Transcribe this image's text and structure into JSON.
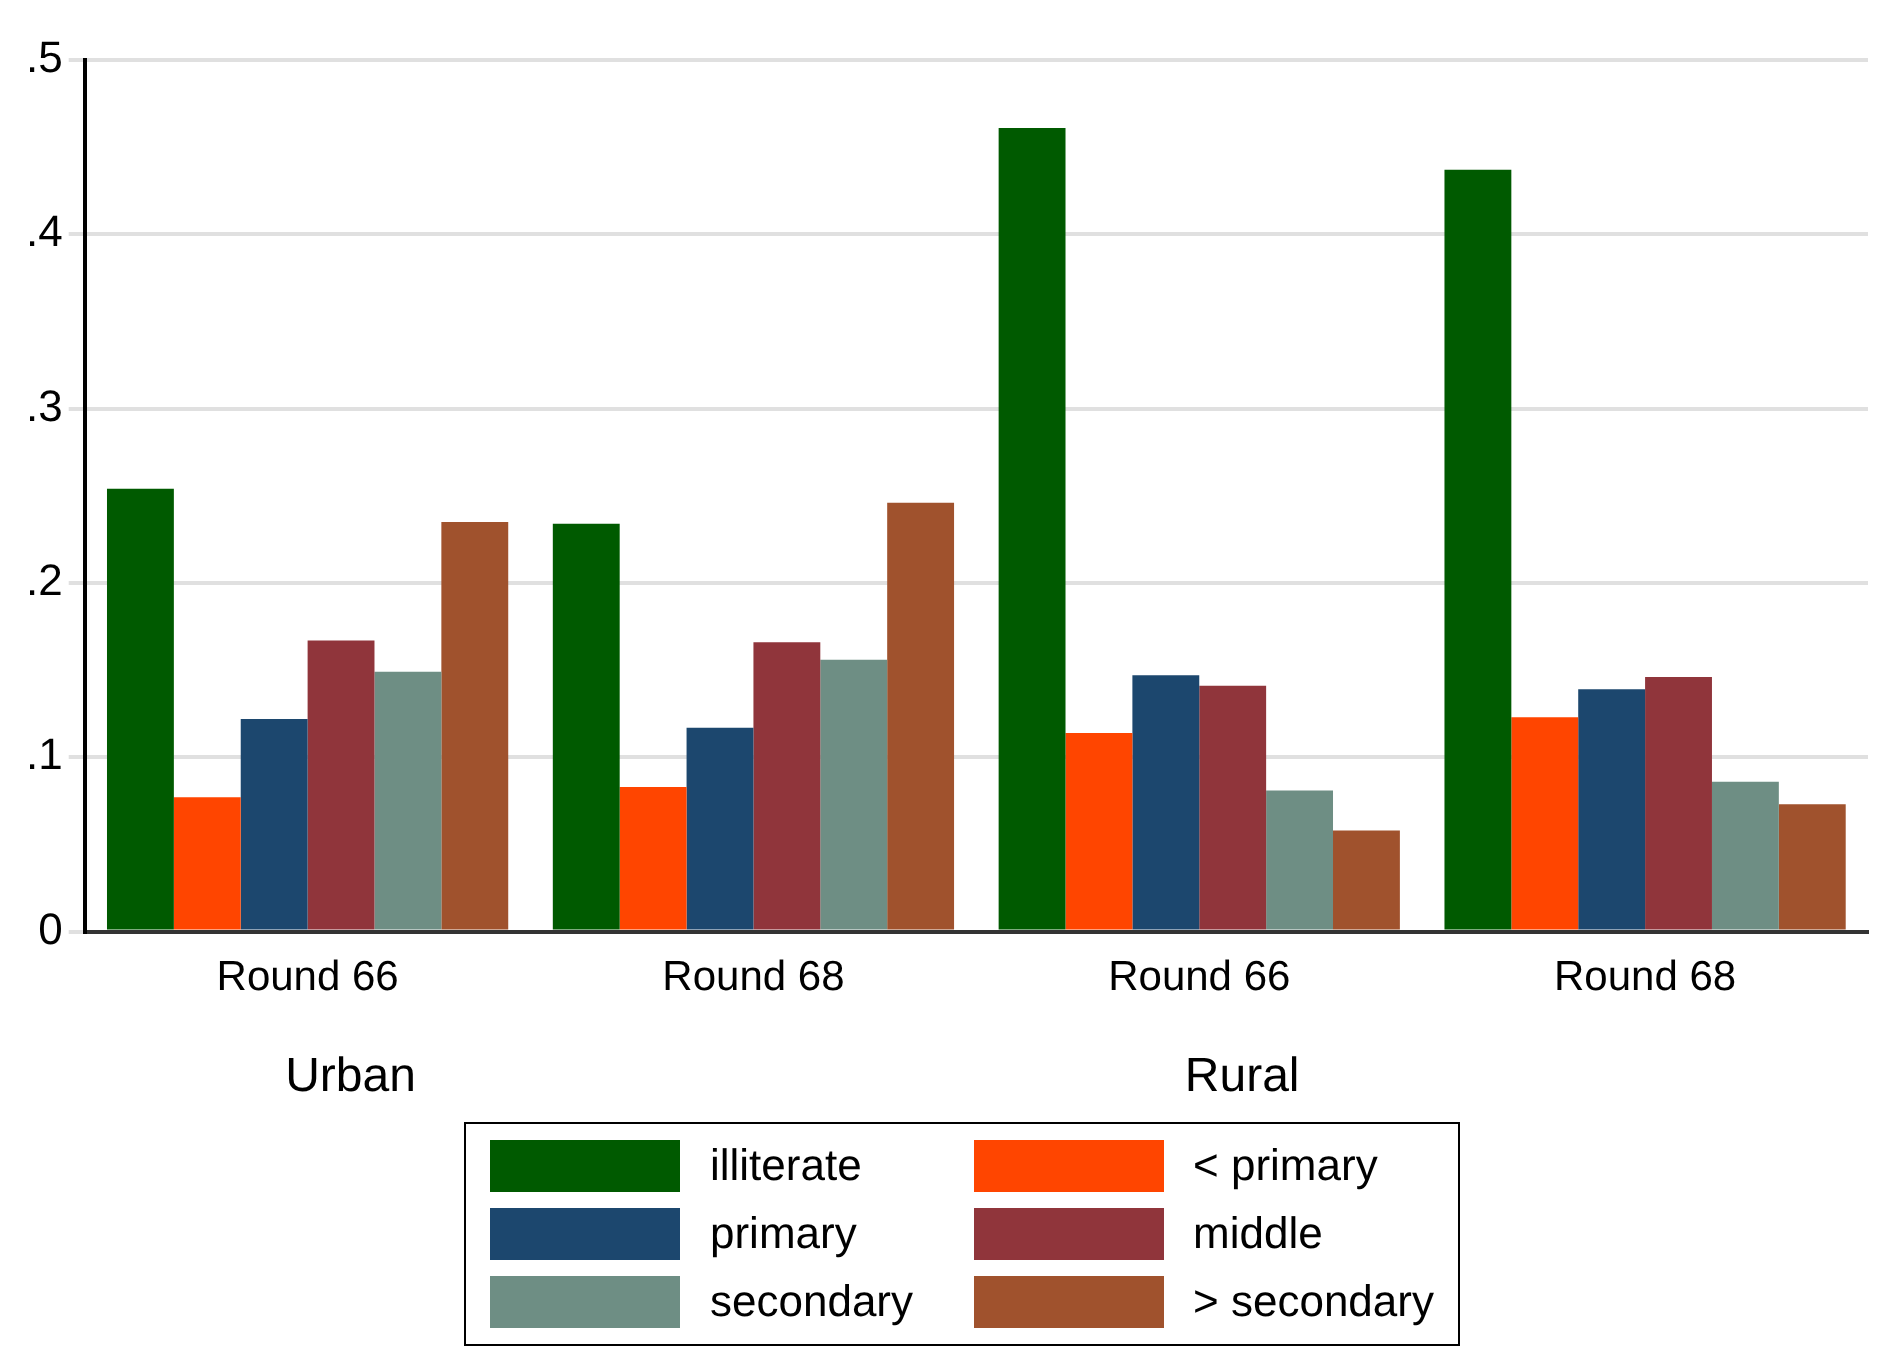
{
  "chart_data": {
    "type": "bar",
    "categories": [
      "Round 66",
      "Round 68",
      "Round 66",
      "Round 68"
    ],
    "series": [
      {
        "name": "illiterate",
        "color": "#005a00",
        "values": [
          0.254,
          0.234,
          0.461,
          0.437
        ]
      },
      {
        "name": "< primary",
        "color": "#ff4500",
        "values": [
          0.077,
          0.083,
          0.114,
          0.123
        ]
      },
      {
        "name": "primary",
        "color": "#1c476e",
        "values": [
          0.122,
          0.117,
          0.147,
          0.139
        ]
      },
      {
        "name": "middle",
        "color": "#90353b",
        "values": [
          0.167,
          0.166,
          0.141,
          0.146
        ]
      },
      {
        "name": "secondary",
        "color": "#6e8e84",
        "values": [
          0.149,
          0.156,
          0.081,
          0.086
        ]
      },
      {
        "name": "> secondary",
        "color": "#a0522d",
        "values": [
          0.235,
          0.246,
          0.058,
          0.073
        ]
      }
    ],
    "annotations": [
      "Urban",
      "Rural"
    ],
    "ylim": [
      0,
      0.5
    ],
    "yticks": [
      0,
      {
        "value": 0.1,
        "label": ".1"
      },
      {
        "value": 0.2,
        "label": ".2"
      },
      {
        "value": 0.3,
        "label": ".3"
      },
      {
        "value": 0.4,
        "label": ".4"
      },
      {
        "value": 0.5,
        "label": ".5"
      }
    ],
    "grid": "y",
    "legend": "bottom"
  }
}
